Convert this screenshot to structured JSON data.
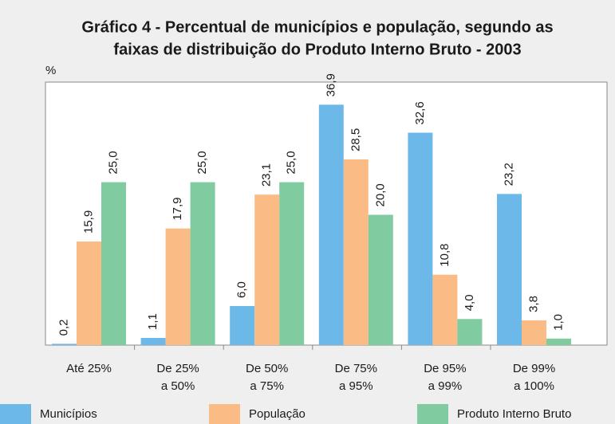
{
  "chart_data": {
    "type": "bar",
    "title": [
      "Gráfico 4 - Percentual de municípios e população, segundo as",
      "faixas de distribuição do Produto Interno Bruto - 2003"
    ],
    "y_label": "%",
    "categories": [
      [
        "Até 25%"
      ],
      [
        "De 25%",
        "a 50%"
      ],
      [
        "De 50%",
        "a 75%"
      ],
      [
        "De 75%",
        "a 95%"
      ],
      [
        "De 95%",
        "a 99%"
      ],
      [
        "De 99%",
        "a 100%"
      ]
    ],
    "series": [
      {
        "name": "Municípios",
        "color": "#6cb8e8",
        "values": [
          0.2,
          1.1,
          6.0,
          36.9,
          32.6,
          23.2
        ],
        "value_labels": [
          "0,2",
          "1,1",
          "6,0",
          "36,9",
          "32,6",
          "23,2"
        ]
      },
      {
        "name": "População",
        "color": "#fbbb85",
        "values": [
          15.9,
          17.9,
          23.1,
          28.5,
          10.8,
          3.8
        ],
        "value_labels": [
          "15,9",
          "17,9",
          "23,1",
          "28,5",
          "10,8",
          "3,8"
        ]
      },
      {
        "name": "Produto Interno Bruto",
        "color": "#80cb9f",
        "values": [
          25.0,
          25.0,
          25.0,
          20.0,
          4.0,
          1.0
        ],
        "value_labels": [
          "25,0",
          "25,0",
          "25,0",
          "20,0",
          "4,0",
          "1,0"
        ]
      }
    ],
    "ylim": [
      0,
      40
    ]
  }
}
